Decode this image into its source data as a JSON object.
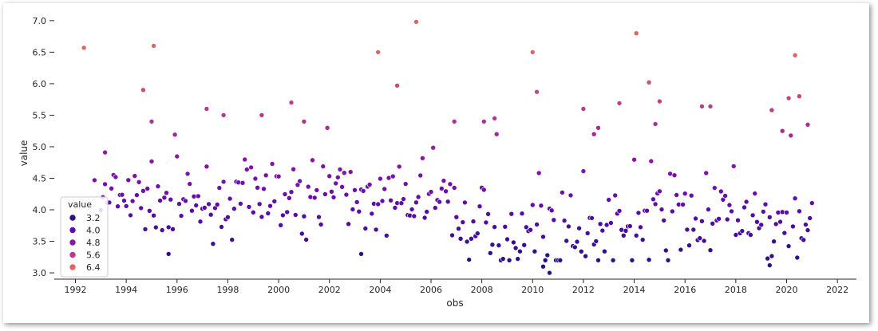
{
  "chart_data": {
    "type": "scatter",
    "xlabel": "obs",
    "ylabel": "value",
    "xlim": [
      "1991-03-01",
      "2022-10-01"
    ],
    "ylim": [
      2.9,
      7.15
    ],
    "x_ticks": [
      "1992",
      "1994",
      "1996",
      "1998",
      "2000",
      "2002",
      "2004",
      "2006",
      "2008",
      "2010",
      "2012",
      "2014",
      "2016",
      "2018",
      "2020",
      "2022"
    ],
    "y_ticks": [
      "3.0",
      "3.5",
      "4.0",
      "4.5",
      "5.0",
      "5.5",
      "6.0",
      "6.5",
      "7.0"
    ],
    "hue": "value",
    "palette": "plasma-like (dark indigo to coral)",
    "legend": {
      "title": "value",
      "placement": "lower-left",
      "entries": [
        {
          "label": "3.2",
          "color": "#2c0f8a"
        },
        {
          "label": "4.0",
          "color": "#5a0cab"
        },
        {
          "label": "4.8",
          "color": "#8c14a6"
        },
        {
          "label": "5.6",
          "color": "#bb3a8c"
        },
        {
          "label": "6.4",
          "color": "#e06461"
        }
      ]
    },
    "highlighted_points": [
      {
        "x": "1992-05-01",
        "y": 6.57
      },
      {
        "x": "1995-02-01",
        "y": 6.6
      },
      {
        "x": "2005-06-01",
        "y": 6.98
      },
      {
        "x": "2003-12-01",
        "y": 6.5
      },
      {
        "x": "2010-01-01",
        "y": 6.5
      },
      {
        "x": "2014-02-01",
        "y": 6.8
      },
      {
        "x": "2020-05-01",
        "y": 6.45
      },
      {
        "x": "1994-09-01",
        "y": 5.9
      },
      {
        "x": "2004-09-01",
        "y": 5.97
      },
      {
        "x": "2010-03-01",
        "y": 5.87
      },
      {
        "x": "2014-08-01",
        "y": 6.02
      },
      {
        "x": "2015-01-01",
        "y": 5.72
      },
      {
        "x": "2016-09-01",
        "y": 5.64
      },
      {
        "x": "2017-01-01",
        "y": 5.64
      },
      {
        "x": "2020-02-01",
        "y": 5.77
      },
      {
        "x": "2020-07-01",
        "y": 5.8
      },
      {
        "x": "2019-06-01",
        "y": 5.58
      },
      {
        "x": "2000-07-01",
        "y": 5.7
      },
      {
        "x": "1997-03-01",
        "y": 5.6
      },
      {
        "x": "2013-06-01",
        "y": 5.69
      },
      {
        "x": "1995-01-01",
        "y": 5.4
      },
      {
        "x": "2001-01-01",
        "y": 5.4
      },
      {
        "x": "1999-05-01",
        "y": 5.5
      },
      {
        "x": "1997-11-01",
        "y": 5.5
      },
      {
        "x": "2008-02-01",
        "y": 5.4
      },
      {
        "x": "2008-07-01",
        "y": 5.45
      },
      {
        "x": "2012-01-01",
        "y": 5.6
      },
      {
        "x": "2012-08-01",
        "y": 5.3
      },
      {
        "x": "2012-06-01",
        "y": 5.2
      },
      {
        "x": "2014-11-01",
        "y": 5.36
      },
      {
        "x": "2020-11-01",
        "y": 5.35
      },
      {
        "x": "2019-11-01",
        "y": 5.25
      },
      {
        "x": "2006-12-01",
        "y": 5.4
      },
      {
        "x": "1993-03-01",
        "y": 4.91
      },
      {
        "x": "1992-10-01",
        "y": 4.47
      },
      {
        "x": "1995-09-01",
        "y": 3.3
      },
      {
        "x": "2003-04-01",
        "y": 3.3
      },
      {
        "x": "2010-09-01",
        "y": 3.0
      },
      {
        "x": "2010-06-01",
        "y": 3.1
      },
      {
        "x": "2019-05-01",
        "y": 3.12
      }
    ],
    "background_series": {
      "x_range": [
        "1993-01-01",
        "2021-01-01"
      ],
      "frequency": "monthly",
      "typical_range": [
        3.2,
        4.9
      ]
    }
  }
}
